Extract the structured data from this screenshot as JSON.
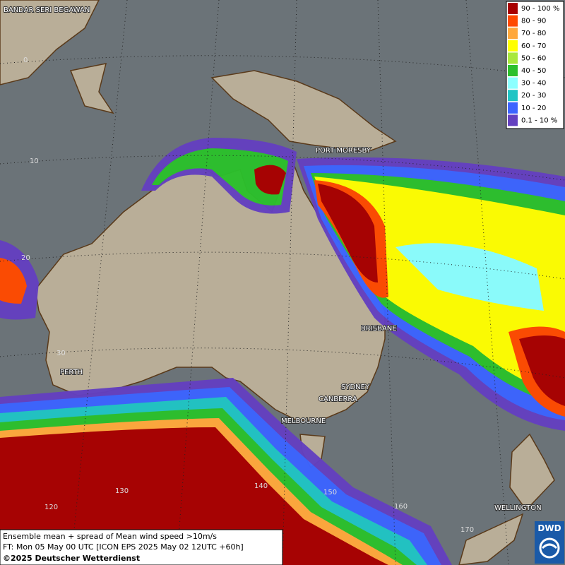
{
  "legend": [
    {
      "label": "90 - 100 %",
      "color": "#a80000"
    },
    {
      "label": "80 - 90",
      "color": "#ff4a00"
    },
    {
      "label": "70 - 80",
      "color": "#ffa83c"
    },
    {
      "label": "60 - 70",
      "color": "#ffff00"
    },
    {
      "label": "50 - 60",
      "color": "#a8e83c"
    },
    {
      "label": "40 - 50",
      "color": "#2cc02c"
    },
    {
      "label": "30 - 40",
      "color": "#8cffff"
    },
    {
      "label": "20 - 30",
      "color": "#20c4c4"
    },
    {
      "label": "10 - 20",
      "color": "#3c64ff"
    },
    {
      "label": "0.1 - 10 %",
      "color": "#6440c0"
    }
  ],
  "cities": [
    "BANDAR SERI BEGAWAN",
    "PORT MORESBY",
    "BRISBANE",
    "PERTH",
    "SYDNEY",
    "CANBERRA",
    "MELBOURNE",
    "WELLINGTON"
  ],
  "grid_labels": [
    "0",
    "10",
    "20",
    "30",
    "120",
    "130",
    "140",
    "150",
    "160",
    "170"
  ],
  "caption": [
    "Ensemble mean + spread of Mean wind speed >10m/s",
    "FT: Mon 05 May 00 UTC [ICON EPS 2025 May 02 12UTC +60h]",
    "©2025 Deutscher Wetterdienst"
  ],
  "logo": "DWD"
}
